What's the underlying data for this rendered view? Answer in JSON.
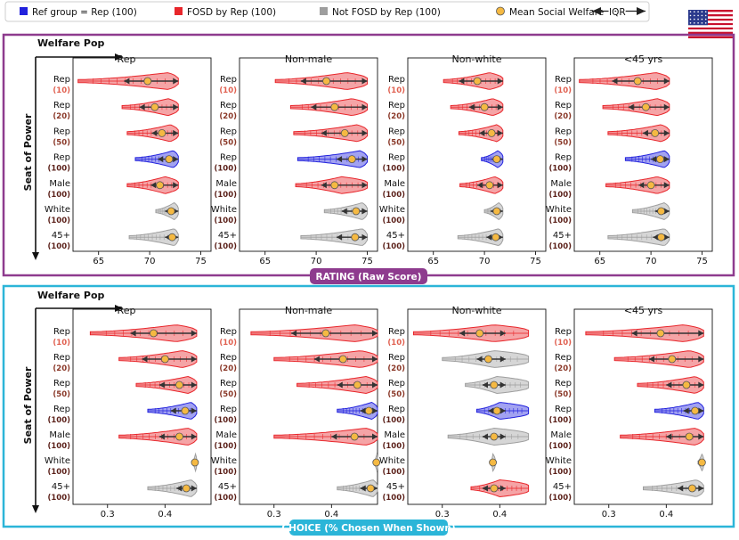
{
  "legend": {
    "items": [
      {
        "label": "Ref group = Rep (100)",
        "color": "#2222dd",
        "kind": "square"
      },
      {
        "label": "FOSD by Rep (100)",
        "color": "#e8262b",
        "kind": "square"
      },
      {
        "label": "Not FOSD by Rep (100)",
        "color": "#9e9e9e",
        "kind": "square"
      },
      {
        "label": "Mean Social Welfare",
        "color": "#f5b942",
        "kind": "circle"
      },
      {
        "label": "IQR",
        "color": "#222222",
        "kind": "iqr"
      }
    ],
    "flag_icon": "us-flag-icon"
  },
  "sections": [
    {
      "id": "rating",
      "banner": "RATING (Raw Score)",
      "border_color": "#8e3b8e",
      "welfare_label": "Welfare Pop",
      "seat_label": "Seat of Power",
      "xticks": [
        65,
        70,
        75
      ],
      "xlim": [
        62.5,
        76
      ]
    },
    {
      "id": "choice",
      "banner": "CHOICE (% Chosen When Shown)",
      "border_color": "#2bb5d8",
      "welfare_label": "Welfare Pop",
      "seat_label": "Seat of Power",
      "xticks": [
        0.3,
        0.4
      ],
      "xlim": [
        0.24,
        0.48
      ]
    }
  ],
  "panel_titles": [
    "Rep",
    "Non-male",
    "Non-white",
    "<45 yrs"
  ],
  "row_labels": [
    {
      "name": "Rep",
      "count": "(10)",
      "count_color": "#e06050"
    },
    {
      "name": "Rep",
      "count": "(20)",
      "count_color": "#8a3828"
    },
    {
      "name": "Rep",
      "count": "(50)",
      "count_color": "#8a3828"
    },
    {
      "name": "Rep",
      "count": "(100)",
      "count_color": "#5a1f18"
    },
    {
      "name": "Male",
      "count": "(100)",
      "count_color": "#5a1f18"
    },
    {
      "name": "White",
      "count": "(100)",
      "count_color": "#5a1f18"
    },
    {
      "name": "45+",
      "count": "(100)",
      "count_color": "#5a1f18"
    }
  ],
  "colors": {
    "red": "#e8262b",
    "blue": "#2222dd",
    "gray": "#9e9e9e",
    "mean": "#f5b942"
  },
  "chart_data": [
    {
      "type": "violin",
      "title": "RATING (Raw Score)",
      "xlabel": "",
      "ylabel": "Seat of Power",
      "xlim": [
        62.5,
        76
      ],
      "panels": [
        {
          "title": "Rep",
          "rows": [
            {
              "group": "red",
              "min": 63,
              "max": 72.8,
              "q1": 67.5,
              "q3": 72.8,
              "mean": 69.8,
              "peak": 71.8
            },
            {
              "group": "red",
              "min": 67.3,
              "max": 72.8,
              "q1": 69,
              "q3": 72.8,
              "mean": 70.5,
              "peak": 71.8
            },
            {
              "group": "red",
              "min": 67.8,
              "max": 72.8,
              "q1": 70.2,
              "q3": 72.8,
              "mean": 71.2,
              "peak": 72
            },
            {
              "group": "blue",
              "min": 68.6,
              "max": 72.8,
              "q1": 70.8,
              "q3": 72.8,
              "mean": 71.9,
              "peak": 72.3
            },
            {
              "group": "red",
              "min": 67.8,
              "max": 72.8,
              "q1": 70.1,
              "q3": 72.8,
              "mean": 71.0,
              "peak": 71.5
            },
            {
              "group": "gray",
              "min": 70.6,
              "max": 72.8,
              "q1": 71.5,
              "q3": 72.8,
              "mean": 72.1,
              "peak": 72.4
            },
            {
              "group": "gray",
              "min": 68,
              "max": 72.8,
              "q1": 71.5,
              "q3": 72.8,
              "mean": 72.2,
              "peak": 72.4
            }
          ]
        },
        {
          "title": "Non-male",
          "rows": [
            {
              "group": "red",
              "min": 66,
              "max": 75,
              "q1": 68.5,
              "q3": 75,
              "mean": 71.0,
              "peak": 73
            },
            {
              "group": "red",
              "min": 67.5,
              "max": 75,
              "q1": 69.5,
              "q3": 75,
              "mean": 71.8,
              "peak": 73.5
            },
            {
              "group": "red",
              "min": 67.8,
              "max": 75,
              "q1": 70.5,
              "q3": 75,
              "mean": 72.8,
              "peak": 74
            },
            {
              "group": "blue",
              "min": 68.2,
              "max": 75,
              "q1": 72,
              "q3": 75,
              "mean": 73.5,
              "peak": 74.3
            },
            {
              "group": "red",
              "min": 68,
              "max": 75,
              "q1": 70.5,
              "q3": 75,
              "mean": 71.8,
              "peak": 72.5
            },
            {
              "group": "gray",
              "min": 70.8,
              "max": 75,
              "q1": 72.5,
              "q3": 75,
              "mean": 73.9,
              "peak": 74.5
            },
            {
              "group": "gray",
              "min": 68.5,
              "max": 75,
              "q1": 72,
              "q3": 75,
              "mean": 73.8,
              "peak": 74.5
            }
          ]
        },
        {
          "title": "Non-white",
          "rows": [
            {
              "group": "red",
              "min": 66,
              "max": 71.8,
              "q1": 67.5,
              "q3": 71.8,
              "mean": 69.3,
              "peak": 70.5
            },
            {
              "group": "red",
              "min": 66.7,
              "max": 71.8,
              "q1": 68.5,
              "q3": 71.8,
              "mean": 70.0,
              "peak": 70.8
            },
            {
              "group": "red",
              "min": 67.5,
              "max": 71.8,
              "q1": 69.5,
              "q3": 71.8,
              "mean": 70.7,
              "peak": 71.2
            },
            {
              "group": "blue",
              "min": 69.7,
              "max": 71.8,
              "q1": 70.7,
              "q3": 71.8,
              "mean": 71.2,
              "peak": 71.3
            },
            {
              "group": "red",
              "min": 67.6,
              "max": 71.8,
              "q1": 69.3,
              "q3": 71.8,
              "mean": 70.5,
              "peak": 71
            },
            {
              "group": "gray",
              "min": 70,
              "max": 71.8,
              "q1": 70.6,
              "q3": 71.8,
              "mean": 71.2,
              "peak": 71.4
            },
            {
              "group": "gray",
              "min": 67.4,
              "max": 71.8,
              "q1": 70.2,
              "q3": 71.8,
              "mean": 71.1,
              "peak": 71.4
            }
          ]
        },
        {
          "title": "<45 yrs",
          "rows": [
            {
              "group": "red",
              "min": 63,
              "max": 71.8,
              "q1": 66.2,
              "q3": 71.8,
              "mean": 68.7,
              "peak": 70.5
            },
            {
              "group": "red",
              "min": 65.3,
              "max": 71.8,
              "q1": 67.8,
              "q3": 71.8,
              "mean": 69.5,
              "peak": 70.6
            },
            {
              "group": "red",
              "min": 65.8,
              "max": 71.8,
              "q1": 69.2,
              "q3": 71.8,
              "mean": 70.4,
              "peak": 71
            },
            {
              "group": "blue",
              "min": 67.5,
              "max": 71.8,
              "q1": 70,
              "q3": 71.8,
              "mean": 70.9,
              "peak": 71.3
            },
            {
              "group": "red",
              "min": 65.6,
              "max": 71.8,
              "q1": 68.8,
              "q3": 71.8,
              "mean": 70.0,
              "peak": 70.6
            },
            {
              "group": "gray",
              "min": 68.2,
              "max": 71.8,
              "q1": 70.4,
              "q3": 71.8,
              "mean": 71.0,
              "peak": 71.3
            },
            {
              "group": "gray",
              "min": 65.8,
              "max": 71.8,
              "q1": 70.2,
              "q3": 71.8,
              "mean": 71.0,
              "peak": 71.3
            }
          ]
        }
      ]
    },
    {
      "type": "violin",
      "title": "CHOICE (% Chosen When Shown)",
      "xlabel": "",
      "ylabel": "Seat of Power",
      "xlim": [
        0.24,
        0.48
      ],
      "panels": [
        {
          "title": "Rep",
          "rows": [
            {
              "group": "red",
              "min": 0.27,
              "max": 0.455,
              "q1": 0.34,
              "q3": 0.455,
              "mean": 0.38,
              "peak": 0.42
            },
            {
              "group": "red",
              "min": 0.32,
              "max": 0.455,
              "q1": 0.36,
              "q3": 0.455,
              "mean": 0.4,
              "peak": 0.43
            },
            {
              "group": "red",
              "min": 0.35,
              "max": 0.455,
              "q1": 0.39,
              "q3": 0.455,
              "mean": 0.425,
              "peak": 0.44
            },
            {
              "group": "blue",
              "min": 0.37,
              "max": 0.455,
              "q1": 0.41,
              "q3": 0.455,
              "mean": 0.435,
              "peak": 0.445
            },
            {
              "group": "red",
              "min": 0.32,
              "max": 0.455,
              "q1": 0.39,
              "q3": 0.455,
              "mean": 0.425,
              "peak": 0.44
            },
            {
              "group": "gray",
              "min": 0.448,
              "max": 0.455,
              "q1": 0.45,
              "q3": 0.455,
              "mean": 0.452,
              "peak": 0.453
            },
            {
              "group": "gray",
              "min": 0.37,
              "max": 0.455,
              "q1": 0.42,
              "q3": 0.455,
              "mean": 0.437,
              "peak": 0.445
            }
          ]
        },
        {
          "title": "Non-male",
          "rows": [
            {
              "group": "red",
              "min": 0.26,
              "max": 0.48,
              "q1": 0.33,
              "q3": 0.48,
              "mean": 0.39,
              "peak": 0.44
            },
            {
              "group": "red",
              "min": 0.3,
              "max": 0.48,
              "q1": 0.37,
              "q3": 0.48,
              "mean": 0.42,
              "peak": 0.45
            },
            {
              "group": "red",
              "min": 0.34,
              "max": 0.48,
              "q1": 0.41,
              "q3": 0.48,
              "mean": 0.445,
              "peak": 0.46
            },
            {
              "group": "blue",
              "min": 0.41,
              "max": 0.48,
              "q1": 0.45,
              "q3": 0.48,
              "mean": 0.465,
              "peak": 0.47
            },
            {
              "group": "red",
              "min": 0.3,
              "max": 0.48,
              "q1": 0.4,
              "q3": 0.48,
              "mean": 0.44,
              "peak": 0.46
            },
            {
              "group": "gray",
              "min": 0.474,
              "max": 0.48,
              "q1": 0.476,
              "q3": 0.48,
              "mean": 0.478,
              "peak": 0.479
            },
            {
              "group": "gray",
              "min": 0.41,
              "max": 0.48,
              "q1": 0.45,
              "q3": 0.48,
              "mean": 0.468,
              "peak": 0.472
            }
          ]
        },
        {
          "title": "Non-white",
          "rows": [
            {
              "group": "red",
              "min": 0.25,
              "max": 0.45,
              "q1": 0.33,
              "q3": 0.41,
              "mean": 0.365,
              "peak": 0.39
            },
            {
              "group": "gray",
              "min": 0.3,
              "max": 0.45,
              "q1": 0.36,
              "q3": 0.41,
              "mean": 0.38,
              "peak": 0.39
            },
            {
              "group": "gray",
              "min": 0.34,
              "max": 0.45,
              "q1": 0.37,
              "q3": 0.41,
              "mean": 0.39,
              "peak": 0.395
            },
            {
              "group": "blue",
              "min": 0.36,
              "max": 0.45,
              "q1": 0.38,
              "q3": 0.41,
              "mean": 0.395,
              "peak": 0.4
            },
            {
              "group": "gray",
              "min": 0.31,
              "max": 0.45,
              "q1": 0.37,
              "q3": 0.41,
              "mean": 0.39,
              "peak": 0.39
            },
            {
              "group": "gray",
              "min": 0.385,
              "max": 0.392,
              "q1": 0.386,
              "q3": 0.39,
              "mean": 0.388,
              "peak": 0.388
            },
            {
              "group": "red",
              "min": 0.35,
              "max": 0.45,
              "q1": 0.37,
              "q3": 0.41,
              "mean": 0.39,
              "peak": 0.4
            }
          ]
        },
        {
          "title": "<45 yrs",
          "rows": [
            {
              "group": "red",
              "min": 0.26,
              "max": 0.465,
              "q1": 0.34,
              "q3": 0.465,
              "mean": 0.39,
              "peak": 0.43
            },
            {
              "group": "red",
              "min": 0.31,
              "max": 0.465,
              "q1": 0.37,
              "q3": 0.465,
              "mean": 0.41,
              "peak": 0.44
            },
            {
              "group": "red",
              "min": 0.35,
              "max": 0.465,
              "q1": 0.4,
              "q3": 0.465,
              "mean": 0.435,
              "peak": 0.45
            },
            {
              "group": "blue",
              "min": 0.38,
              "max": 0.465,
              "q1": 0.43,
              "q3": 0.465,
              "mean": 0.45,
              "peak": 0.455
            },
            {
              "group": "red",
              "min": 0.32,
              "max": 0.465,
              "q1": 0.4,
              "q3": 0.465,
              "mean": 0.44,
              "peak": 0.45
            },
            {
              "group": "gray",
              "min": 0.455,
              "max": 0.465,
              "q1": 0.458,
              "q3": 0.465,
              "mean": 0.462,
              "peak": 0.462
            },
            {
              "group": "gray",
              "min": 0.36,
              "max": 0.465,
              "q1": 0.42,
              "q3": 0.465,
              "mean": 0.445,
              "peak": 0.452
            }
          ]
        }
      ]
    }
  ]
}
